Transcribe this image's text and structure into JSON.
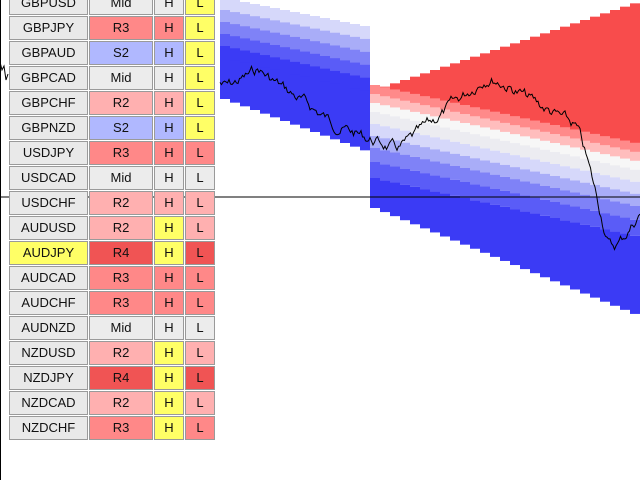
{
  "colors": {
    "neutral": "#e9e9e9",
    "symbol_default": "#e9e9e9",
    "symbol_highlight": "#ffff66",
    "hl_highlight": "#ffff66",
    "R2": "#ffb0b0",
    "R3": "#ff8888",
    "R4": "#f05454",
    "S2": "#b0b8ff",
    "Mid": "#ececec",
    "price_line": "#000000"
  },
  "rows": [
    {
      "symbol": "GBPUSD",
      "level": "Mid",
      "h": "H",
      "l": "L",
      "symbol_hl": false,
      "h_hl": false,
      "l_hl": true
    },
    {
      "symbol": "GBPJPY",
      "level": "R3",
      "h": "H",
      "l": "L",
      "symbol_hl": false,
      "h_hl": false,
      "l_hl": true
    },
    {
      "symbol": "GBPAUD",
      "level": "S2",
      "h": "H",
      "l": "L",
      "symbol_hl": false,
      "h_hl": false,
      "l_hl": true
    },
    {
      "symbol": "GBPCAD",
      "level": "Mid",
      "h": "H",
      "l": "L",
      "symbol_hl": false,
      "h_hl": false,
      "l_hl": true
    },
    {
      "symbol": "GBPCHF",
      "level": "R2",
      "h": "H",
      "l": "L",
      "symbol_hl": false,
      "h_hl": false,
      "l_hl": true
    },
    {
      "symbol": "GBPNZD",
      "level": "S2",
      "h": "H",
      "l": "L",
      "symbol_hl": false,
      "h_hl": false,
      "l_hl": true
    },
    {
      "symbol": "USDJPY",
      "level": "R3",
      "h": "H",
      "l": "L",
      "symbol_hl": false,
      "h_hl": false,
      "l_hl": false
    },
    {
      "symbol": "USDCAD",
      "level": "Mid",
      "h": "H",
      "l": "L",
      "symbol_hl": false,
      "h_hl": false,
      "l_hl": false
    },
    {
      "symbol": "USDCHF",
      "level": "R2",
      "h": "H",
      "l": "L",
      "symbol_hl": false,
      "h_hl": false,
      "l_hl": false
    },
    {
      "symbol": "AUDUSD",
      "level": "R2",
      "h": "H",
      "l": "L",
      "symbol_hl": false,
      "h_hl": true,
      "l_hl": false
    },
    {
      "symbol": "AUDJPY",
      "level": "R4",
      "h": "H",
      "l": "L",
      "symbol_hl": true,
      "h_hl": true,
      "l_hl": false
    },
    {
      "symbol": "AUDCAD",
      "level": "R3",
      "h": "H",
      "l": "L",
      "symbol_hl": false,
      "h_hl": false,
      "l_hl": false
    },
    {
      "symbol": "AUDCHF",
      "level": "R3",
      "h": "H",
      "l": "L",
      "symbol_hl": false,
      "h_hl": false,
      "l_hl": false
    },
    {
      "symbol": "AUDNZD",
      "level": "Mid",
      "h": "H",
      "l": "L",
      "symbol_hl": false,
      "h_hl": false,
      "l_hl": false
    },
    {
      "symbol": "NZDUSD",
      "level": "R2",
      "h": "H",
      "l": "L",
      "symbol_hl": false,
      "h_hl": true,
      "l_hl": false
    },
    {
      "symbol": "NZDJPY",
      "level": "R4",
      "h": "H",
      "l": "L",
      "symbol_hl": false,
      "h_hl": true,
      "l_hl": false
    },
    {
      "symbol": "NZDCAD",
      "level": "R2",
      "h": "H",
      "l": "L",
      "symbol_hl": false,
      "h_hl": true,
      "l_hl": false
    },
    {
      "symbol": "NZDCHF",
      "level": "R3",
      "h": "H",
      "l": "L",
      "symbol_hl": false,
      "h_hl": true,
      "l_hl": false
    }
  ]
}
